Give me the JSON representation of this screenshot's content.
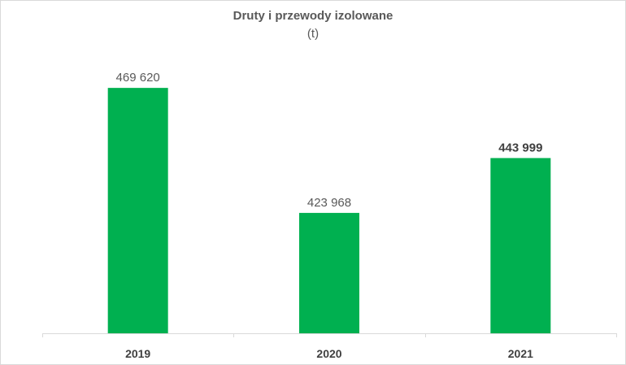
{
  "chart_data": {
    "type": "bar",
    "title": "Druty  i przewody izolowane",
    "subtitle": "(t)",
    "categories": [
      "2019",
      "2020",
      "2021"
    ],
    "values": [
      469620,
      423968,
      443999
    ],
    "data_labels": [
      "469 620",
      "423 968",
      "443 999"
    ],
    "highlighted_label_index": 2,
    "xlabel": "",
    "ylabel": "",
    "ylim": [
      380000,
      475000
    ],
    "grid": false,
    "legend": "none",
    "bar_color": "#00b050",
    "text_color": "#595959",
    "axis_color": "#d9d9d9"
  }
}
